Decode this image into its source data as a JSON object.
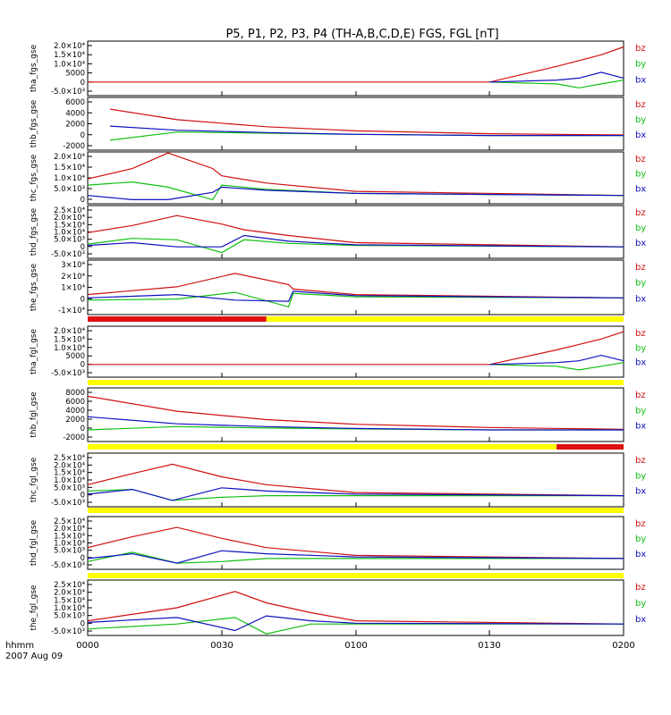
{
  "title": "P5, P1, P2, P3, P4 (TH-A,B,C,D,E) FGS, FGL [nT]",
  "x_axis": {
    "ticks": [
      "0000",
      "0030",
      "0100",
      "0130",
      "0200"
    ],
    "label_line1": "hhmm",
    "label_line2": "2007 Aug 09"
  },
  "colors": {
    "bz": "#d01010",
    "by": "#10c010",
    "bx": "#1010c0",
    "flag_yellow": "#ffff00",
    "flag_red": "#e01010"
  },
  "panels": [
    {
      "ylabel": "tha_fgs_gse",
      "ticks": [
        "2.0×10⁴",
        "1.5×10⁴",
        "1.0×10⁴",
        "5000",
        "0",
        "-5.0×10³"
      ],
      "legend": [
        "bz",
        "by",
        "bx"
      ]
    },
    {
      "ylabel": "thb_fgs_gse",
      "ticks": [
        "6000",
        "4000",
        "2000",
        "0",
        "-2000"
      ],
      "legend": [
        "bz",
        "by",
        "bx"
      ]
    },
    {
      "ylabel": "thc_fgs_gse",
      "ticks": [
        "2.0×10⁴",
        "1.5×10⁴",
        "1.0×10⁴",
        "5.0×10³",
        "0"
      ],
      "legend": [
        "bz",
        "by",
        "bx"
      ]
    },
    {
      "ylabel": "thd_fgs_gse",
      "ticks": [
        "2.5×10⁴",
        "2.0×10⁴",
        "1.5×10⁴",
        "1.0×10⁴",
        "5.0×10³",
        "0",
        "-5.0×10³"
      ],
      "legend": [
        "bz",
        "by",
        "bx"
      ]
    },
    {
      "ylabel": "the_fgs_gse",
      "ticks": [
        "3×10⁴",
        "2×10⁴",
        "1×10⁴",
        "0",
        "-1×10⁴"
      ],
      "legend": [
        "bz",
        "by",
        "bx"
      ]
    },
    {
      "ylabel": "tha_fgl_gse",
      "ticks": [
        "2.0×10⁴",
        "1.5×10⁴",
        "1.0×10⁴",
        "5000",
        "0",
        "-5.0×10³"
      ],
      "legend": [
        "bz",
        "by",
        "bx"
      ]
    },
    {
      "ylabel": "thb_fgl_gse",
      "ticks": [
        "8000",
        "6000",
        "4000",
        "2000",
        "0",
        "-2000"
      ],
      "legend": [
        "bz",
        "by",
        "bx"
      ]
    },
    {
      "ylabel": "thc_fgl_gse",
      "ticks": [
        "2.5×10⁴",
        "2.0×10⁴",
        "1.5×10⁴",
        "1.0×10⁴",
        "5.0×10³",
        "0",
        "-5.0×10³"
      ],
      "legend": [
        "bz",
        "by",
        "bx"
      ]
    },
    {
      "ylabel": "thd_fgl_gse",
      "ticks": [
        "2.5×10⁴",
        "2.0×10⁴",
        "1.5×10⁴",
        "1.0×10⁴",
        "5.0×10³",
        "0",
        "-5.0×10³"
      ],
      "legend": [
        "bz",
        "by",
        "bx"
      ]
    },
    {
      "ylabel": "the_fgl_gse",
      "ticks": [
        "2.5×10⁴",
        "2.0×10⁴",
        "1.5×10⁴",
        "1.0×10⁴",
        "5.0×10³",
        "0",
        "-5.0×10³"
      ],
      "legend": [
        "bz",
        "by",
        "bx"
      ]
    }
  ],
  "chart_data": {
    "type": "line",
    "title": "P5, P1, P2, P3, P4 (TH-A,B,C,D,E) FGS, FGL [nT]",
    "x_unit": "hhmm",
    "x_range": [
      "0000",
      "0200"
    ],
    "date": "2007 Aug 09",
    "series_names": [
      "bz",
      "by",
      "bx"
    ],
    "panels": [
      {
        "name": "tha_fgs_gse",
        "ylim": [
          -7000,
          21000
        ],
        "x": [
          "0000",
          "0130",
          "0145",
          "0150",
          "0155",
          "0200"
        ],
        "bz": [
          0,
          0,
          8000,
          11000,
          14000,
          18000
        ],
        "by": [
          null,
          0,
          -1000,
          -3000,
          -1000,
          1000
        ],
        "bx": [
          null,
          0,
          1000,
          2000,
          5000,
          2000
        ]
      },
      {
        "name": "thb_fgs_gse",
        "ylim": [
          -2500,
          6500
        ],
        "x": [
          "0005",
          "0020",
          "0040",
          "0100",
          "0130",
          "0200"
        ],
        "bz": [
          4500,
          2700,
          1500,
          800,
          300,
          100
        ],
        "by": [
          -800,
          600,
          400,
          200,
          0,
          0
        ],
        "bx": [
          1600,
          900,
          500,
          200,
          0,
          0
        ]
      },
      {
        "name": "thc_fgs_gse",
        "ylim": [
          -4000,
          21000
        ],
        "x": [
          "0000",
          "0010",
          "0018",
          "0028",
          "0030",
          "0040",
          "0100",
          "0200"
        ],
        "bz": [
          8000,
          13000,
          20500,
          13000,
          9500,
          6000,
          2000,
          0
        ],
        "by": [
          5000,
          6500,
          4000,
          -2000,
          5000,
          3000,
          1000,
          0
        ],
        "bx": [
          0,
          -2000,
          -2000,
          1500,
          4000,
          2500,
          1000,
          0
        ]
      },
      {
        "name": "thd_fgs_gse",
        "ylim": [
          -8000,
          29000
        ],
        "x": [
          "0000",
          "0010",
          "0020",
          "0030",
          "0035",
          "0045",
          "0100",
          "0200"
        ],
        "bz": [
          10000,
          15000,
          22000,
          16000,
          12000,
          8000,
          3000,
          0
        ],
        "by": [
          2000,
          6000,
          5000,
          -4000,
          5000,
          2500,
          1000,
          0
        ],
        "bx": [
          1000,
          3000,
          0,
          0,
          8000,
          4000,
          1500,
          0
        ]
      },
      {
        "name": "the_fgs_gse",
        "ylim": [
          -15000,
          34000
        ],
        "x": [
          "0000",
          "0020",
          "0033",
          "0045",
          "0046",
          "0100",
          "0200"
        ],
        "bz": [
          3000,
          10000,
          22000,
          12000,
          8000,
          3000,
          0
        ],
        "by": [
          -2000,
          -1000,
          5000,
          -8000,
          4000,
          1000,
          0
        ],
        "bx": [
          0,
          3000,
          -2000,
          -3000,
          6000,
          2000,
          0
        ]
      },
      {
        "name": "tha_fgl_gse",
        "ylim": [
          -7000,
          21000
        ],
        "x": [
          "0000",
          "0130",
          "0145",
          "0150",
          "0155",
          "0200"
        ],
        "bz": [
          0,
          0,
          8000,
          11000,
          14000,
          18000
        ],
        "by": [
          null,
          0,
          -1000,
          -3000,
          -1000,
          1000
        ],
        "bx": [
          null,
          0,
          1000,
          2000,
          5000,
          2000
        ]
      },
      {
        "name": "thb_fgl_gse",
        "ylim": [
          -2500,
          9000
        ],
        "x": [
          "0000",
          "0020",
          "0040",
          "0100",
          "0130",
          "0200"
        ],
        "bz": [
          7200,
          4000,
          2200,
          1200,
          500,
          100
        ],
        "by": [
          0,
          700,
          400,
          200,
          0,
          0
        ],
        "bx": [
          2800,
          1300,
          700,
          300,
          0,
          0
        ]
      },
      {
        "name": "thc_fgl_gse",
        "ylim": [
          -7000,
          27000
        ],
        "x": [
          "0000",
          "0010",
          "0019",
          "0030",
          "0040",
          "0100",
          "0200"
        ],
        "bz": [
          7000,
          14000,
          20000,
          12000,
          7000,
          2000,
          0
        ],
        "by": [
          3000,
          4000,
          -3000,
          -1000,
          0,
          0,
          0
        ],
        "bx": [
          1000,
          4000,
          -3000,
          5000,
          3000,
          1000,
          0
        ]
      },
      {
        "name": "thd_fgl_gse",
        "ylim": [
          -7000,
          27000
        ],
        "x": [
          "0000",
          "0010",
          "0020",
          "0030",
          "0040",
          "0100",
          "0200"
        ],
        "bz": [
          7000,
          14000,
          20000,
          13000,
          7000,
          2000,
          0
        ],
        "by": [
          -2000,
          4000,
          -3000,
          -2000,
          0,
          0,
          0
        ],
        "bx": [
          0,
          3000,
          -3000,
          5000,
          3000,
          1000,
          0
        ]
      },
      {
        "name": "the_fgl_gse",
        "ylim": [
          -7000,
          27000
        ],
        "x": [
          "0000",
          "0020",
          "0033",
          "0040",
          "0050",
          "0100",
          "0200"
        ],
        "bz": [
          2000,
          10000,
          20000,
          13000,
          7000,
          2000,
          0
        ],
        "by": [
          -3000,
          0,
          4000,
          -6000,
          0,
          0,
          0
        ],
        "bx": [
          1000,
          4000,
          -4000,
          5000,
          2000,
          500,
          0
        ]
      }
    ],
    "flag_bars": [
      {
        "after": "the_fgs_gse",
        "red": [
          "0000",
          "0040"
        ],
        "yellow": [
          "0040",
          "0200"
        ]
      },
      {
        "after": "tha_fgl_gse",
        "yellow": [
          "0000",
          "0200"
        ]
      },
      {
        "after": "thb_fgl_gse",
        "yellow": [
          "0000",
          "0145"
        ],
        "red": [
          "0145",
          "0200"
        ]
      },
      {
        "after": "thc_fgl_gse",
        "yellow": [
          "0000",
          "0200"
        ]
      },
      {
        "after": "thd_fgl_gse",
        "yellow": [
          "0000",
          "0200"
        ]
      }
    ]
  }
}
